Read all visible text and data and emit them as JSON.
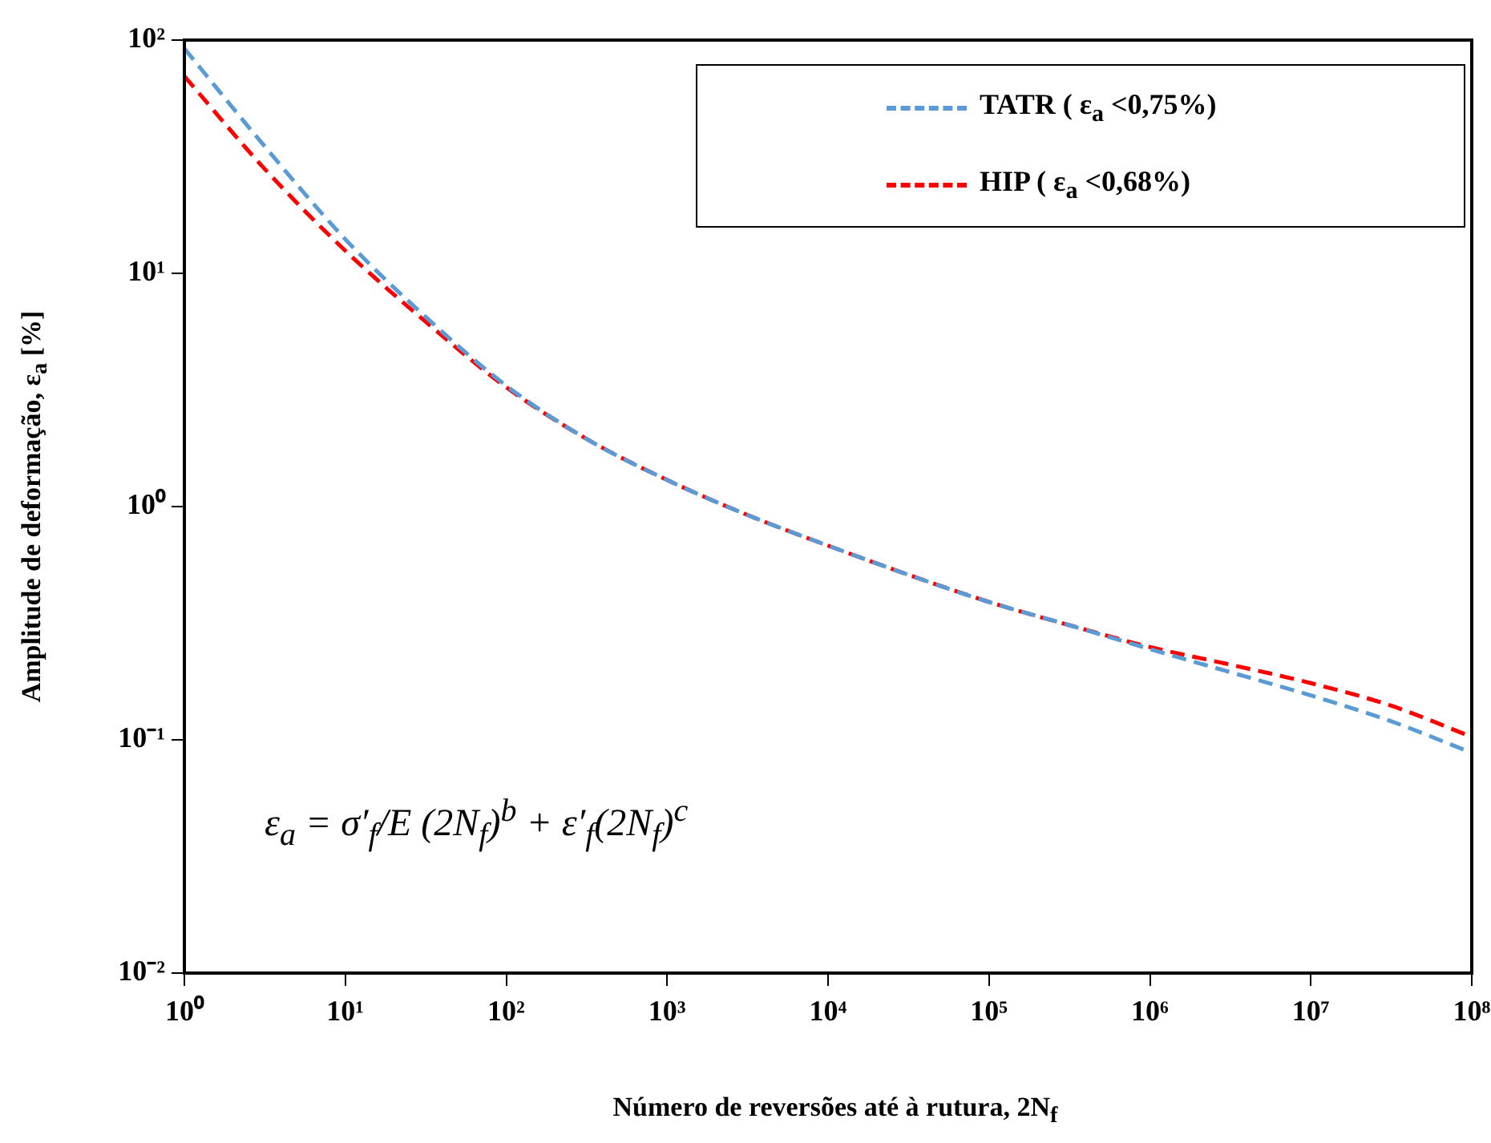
{
  "chart_data": {
    "type": "line",
    "xlabel": "Número de reversões até à rutura,  2N$_{f}$",
    "ylabel": "Amplitude  de deformação, ε$_{a}$ [%]",
    "log": "xy",
    "grid": false,
    "legend": "top right",
    "marker": "none",
    "line_style": "dashed",
    "x": [
      1,
      3.16,
      10,
      31.6,
      100,
      316,
      1000,
      3162,
      10000,
      31620,
      100000,
      316200,
      1000000,
      3162000,
      10000000,
      31620000,
      100000000
    ],
    "xlim": [
      1,
      100000000
    ],
    "ylim": [
      0.01,
      100
    ],
    "xticks": [
      {
        "value": 1,
        "label": "10⁰"
      },
      {
        "value": 10,
        "label": "10¹"
      },
      {
        "value": 100,
        "label": "10²"
      },
      {
        "value": 1000,
        "label": "10³"
      },
      {
        "value": 10000,
        "label": "10⁴"
      },
      {
        "value": 100000,
        "label": "10⁵"
      },
      {
        "value": 1000000,
        "label": "10⁶"
      },
      {
        "value": 10000000,
        "label": "10⁷"
      },
      {
        "value": 100000000,
        "label": "10⁸"
      }
    ],
    "yticks": [
      {
        "value": 0.01,
        "label": "10⁻²"
      },
      {
        "value": 0.1,
        "label": "10⁻¹"
      },
      {
        "value": 1,
        "label": "10⁰"
      },
      {
        "value": 10,
        "label": "10¹"
      },
      {
        "value": 100,
        "label": "10²"
      }
    ],
    "series": [
      {
        "name": "TATR ( ε$_{a}$ <0,75%)",
        "color": "#5b9bd5",
        "values": [
          92,
          35,
          14,
          6.5,
          3.3,
          1.95,
          1.3,
          0.92,
          0.68,
          0.51,
          0.39,
          0.31,
          0.245,
          0.195,
          0.155,
          0.12,
          0.088
        ]
      },
      {
        "name": "HIP ( ε$_{a}$ <0,68%)",
        "color": "#ff0000",
        "values": [
          70,
          28,
          12.5,
          6.2,
          3.25,
          1.95,
          1.3,
          0.92,
          0.68,
          0.51,
          0.39,
          0.31,
          0.25,
          0.21,
          0.175,
          0.14,
          0.103
        ]
      }
    ],
    "annotations": [
      "ε$_{a}$ = σ′$_{f}$/E (2N$_{f}$)$^{b}$ + ε′$_{f}$(2N$_{f}$)$^{c}$"
    ]
  }
}
